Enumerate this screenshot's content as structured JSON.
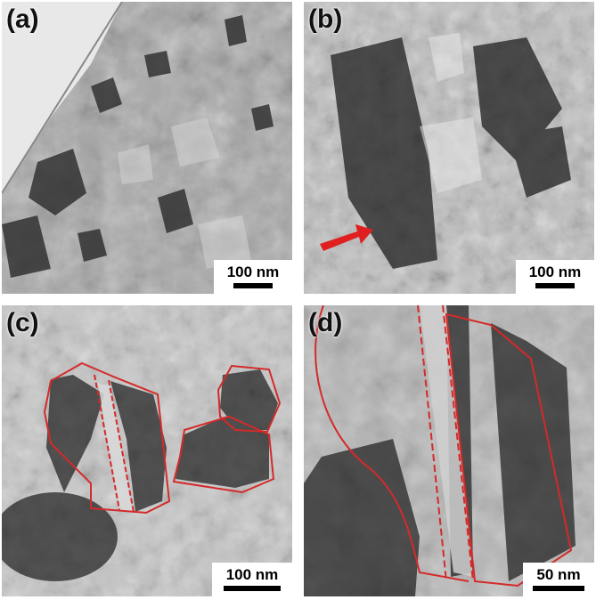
{
  "figure": {
    "panels": [
      {
        "label": "(a)",
        "scale_bar": "100 nm"
      },
      {
        "label": "(b)",
        "scale_bar": "100 nm"
      },
      {
        "label": "(c)",
        "scale_bar": "100 nm"
      },
      {
        "label": "(d)",
        "scale_bar": "50 nm"
      }
    ]
  },
  "colors": {
    "outline": "#d42a2a",
    "arrow": "#e02020",
    "background": "#ffffff",
    "scale_bar": "#000000"
  }
}
